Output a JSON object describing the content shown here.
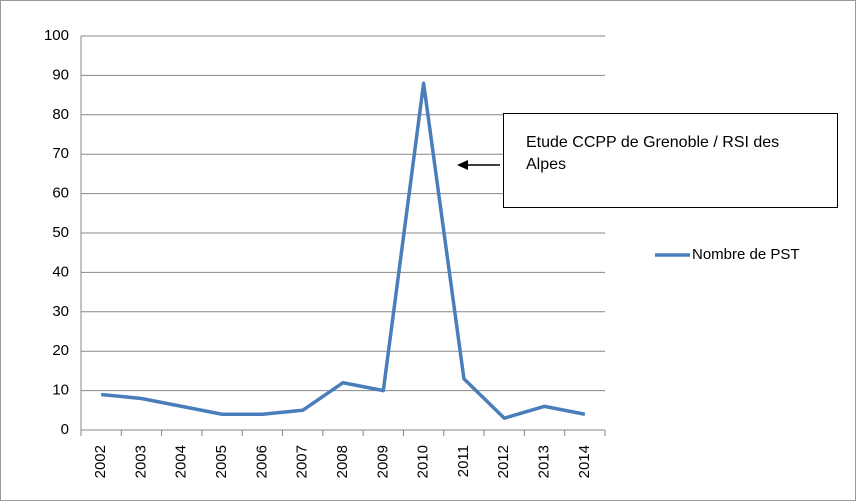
{
  "chart_data": {
    "type": "line",
    "categories": [
      "2002",
      "2003",
      "2004",
      "2005",
      "2006",
      "2007",
      "2008",
      "2009",
      "2010",
      "2011",
      "2012",
      "2013",
      "2014"
    ],
    "series": [
      {
        "name": "Nombre de PST",
        "color": "#4a7ebb",
        "values": [
          9,
          8,
          6,
          4,
          4,
          5,
          12,
          10,
          88,
          13,
          3,
          6,
          4
        ]
      }
    ],
    "ylim": [
      0,
      100
    ],
    "yticks": [
      0,
      10,
      20,
      30,
      40,
      50,
      60,
      70,
      80,
      90,
      100
    ],
    "grid": true,
    "legend": "right",
    "annotation": "Etude CCPP de Grenoble / RSI des Alpes"
  }
}
